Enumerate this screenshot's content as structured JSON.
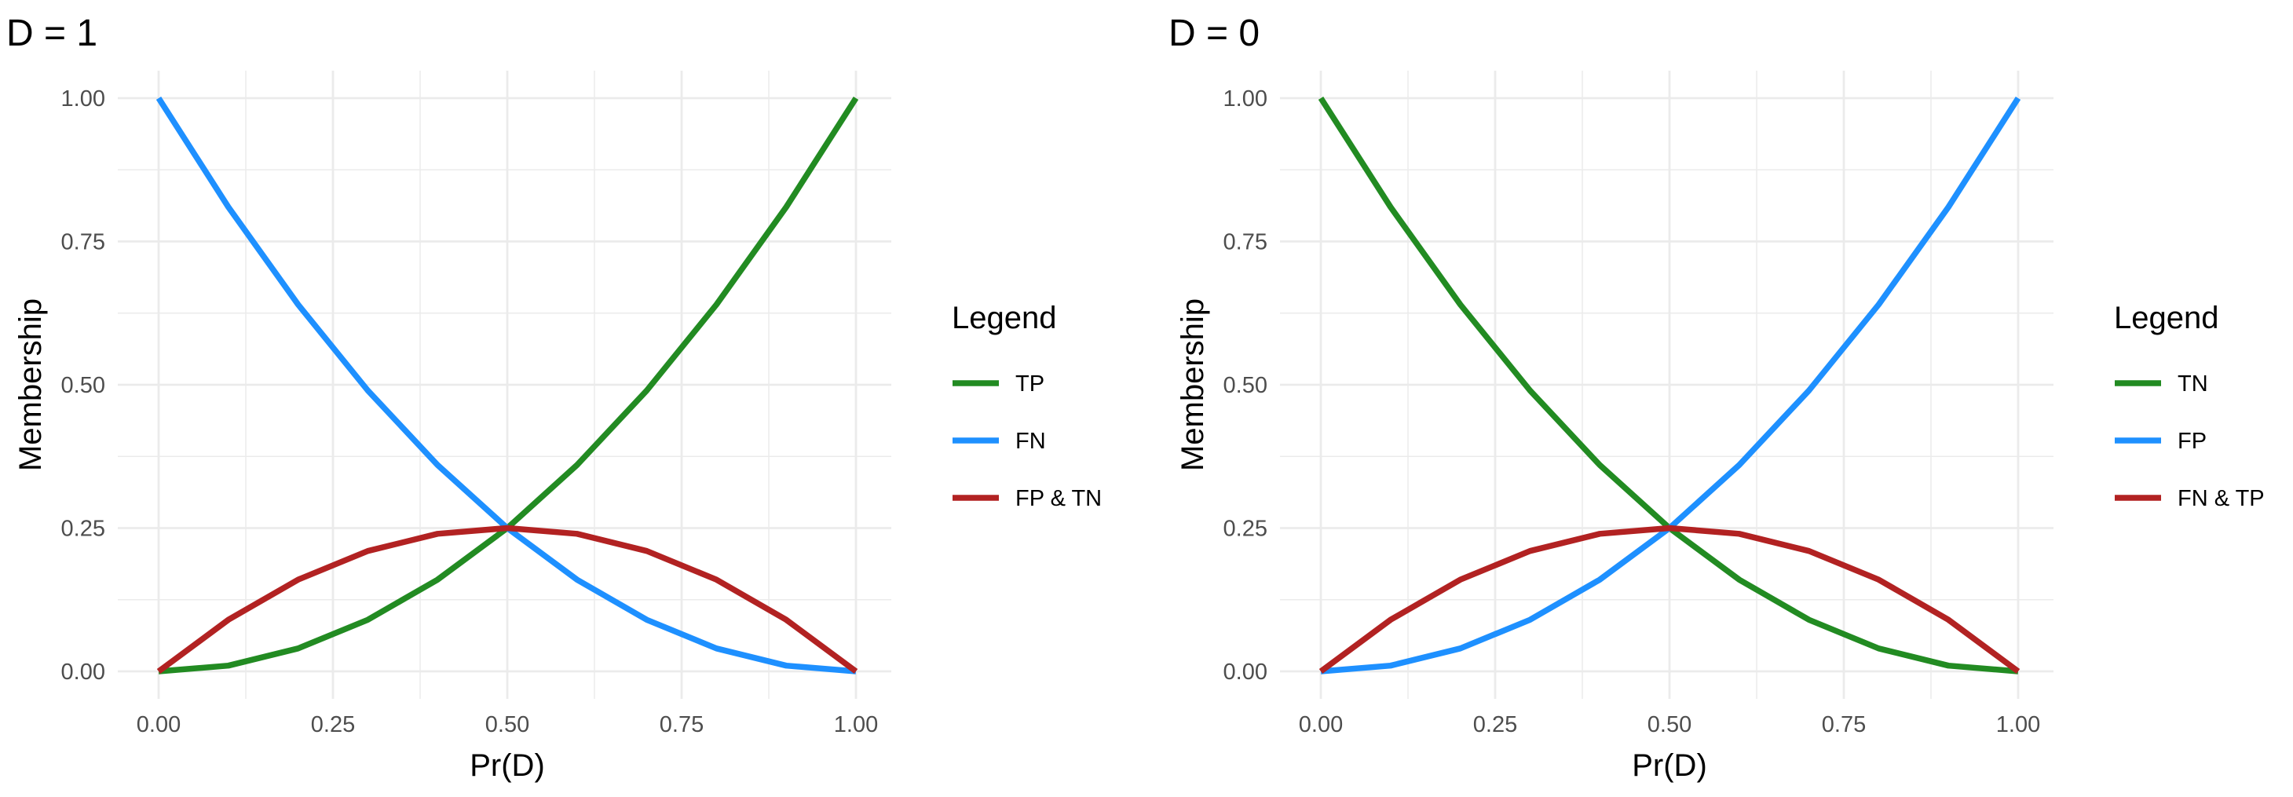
{
  "chart_data": [
    {
      "type": "line",
      "title": "D = 1",
      "xlabel": "Pr(D)",
      "ylabel": "Membership",
      "xlim": [
        0,
        1
      ],
      "ylim": [
        0,
        1
      ],
      "xticks": [
        "0.00",
        "0.25",
        "0.50",
        "0.75",
        "1.00"
      ],
      "yticks": [
        "0.00",
        "0.25",
        "0.50",
        "0.75",
        "1.00"
      ],
      "grid": true,
      "legend_title": "Legend",
      "legend_position": "right",
      "x": [
        0,
        0.1,
        0.2,
        0.3,
        0.4,
        0.5,
        0.6,
        0.7,
        0.8,
        0.9,
        1.0
      ],
      "series": [
        {
          "name": "TP",
          "color": "#228B22",
          "values": [
            0,
            0.01,
            0.04,
            0.09,
            0.16,
            0.25,
            0.36,
            0.49,
            0.64,
            0.81,
            1.0
          ]
        },
        {
          "name": "FN",
          "color": "#1E90FF",
          "values": [
            1.0,
            0.81,
            0.64,
            0.49,
            0.36,
            0.25,
            0.16,
            0.09,
            0.04,
            0.01,
            0
          ]
        },
        {
          "name": "FP & TN",
          "color": "#B22222",
          "values": [
            0,
            0.09,
            0.16,
            0.21,
            0.24,
            0.25,
            0.24,
            0.21,
            0.16,
            0.09,
            0
          ]
        }
      ]
    },
    {
      "type": "line",
      "title": "D = 0",
      "xlabel": "Pr(D)",
      "ylabel": "Membership",
      "xlim": [
        0,
        1
      ],
      "ylim": [
        0,
        1
      ],
      "xticks": [
        "0.00",
        "0.25",
        "0.50",
        "0.75",
        "1.00"
      ],
      "yticks": [
        "0.00",
        "0.25",
        "0.50",
        "0.75",
        "1.00"
      ],
      "grid": true,
      "legend_title": "Legend",
      "legend_position": "right",
      "x": [
        0,
        0.1,
        0.2,
        0.3,
        0.4,
        0.5,
        0.6,
        0.7,
        0.8,
        0.9,
        1.0
      ],
      "series": [
        {
          "name": "TN",
          "color": "#228B22",
          "values": [
            1.0,
            0.81,
            0.64,
            0.49,
            0.36,
            0.25,
            0.16,
            0.09,
            0.04,
            0.01,
            0
          ]
        },
        {
          "name": "FP",
          "color": "#1E90FF",
          "values": [
            0,
            0.01,
            0.04,
            0.09,
            0.16,
            0.25,
            0.36,
            0.49,
            0.64,
            0.81,
            1.0
          ]
        },
        {
          "name": "FN & TP",
          "color": "#B22222",
          "values": [
            0,
            0.09,
            0.16,
            0.21,
            0.24,
            0.25,
            0.24,
            0.21,
            0.16,
            0.09,
            0
          ]
        }
      ]
    }
  ]
}
